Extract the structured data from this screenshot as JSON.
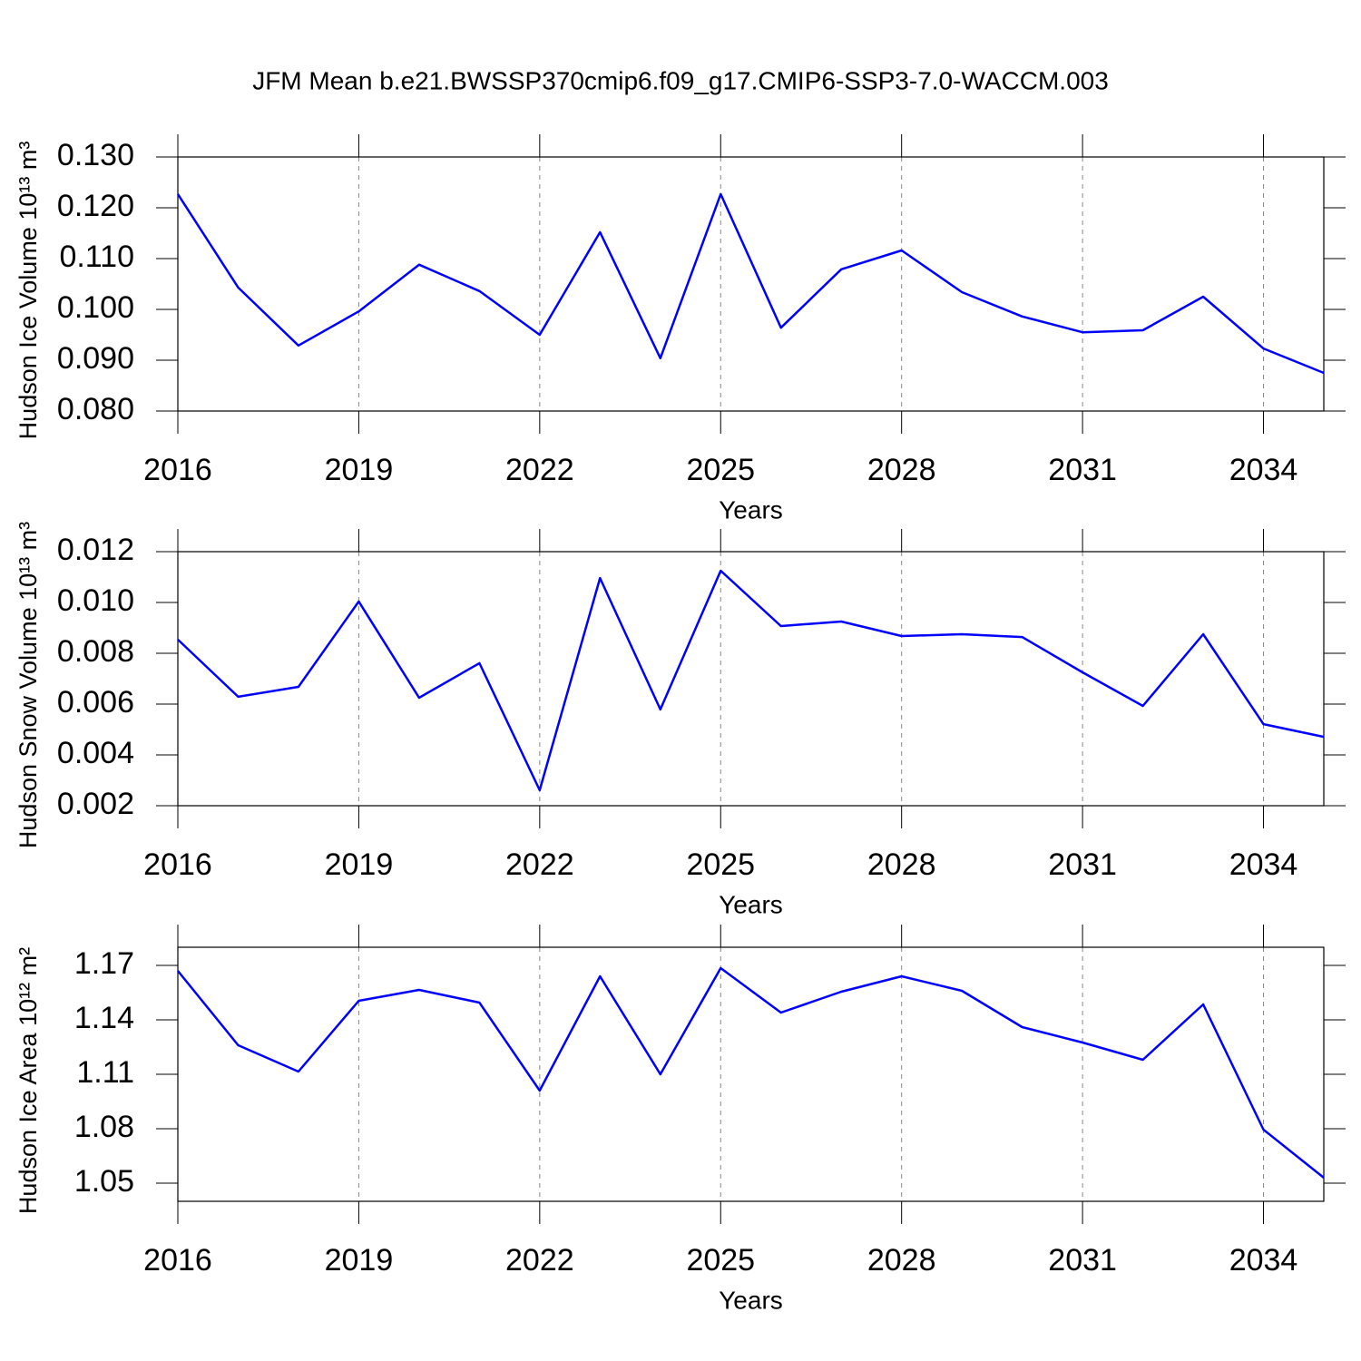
{
  "chart_data": [
    {
      "type": "line",
      "title": "JFM Mean b.e21.BWSSP370cmip6.f09_g17.CMIP6-SSP3-7.0-WACCM.003",
      "ylabel": "Hudson Ice Volume 10¹³ m³",
      "xlabel": "Years",
      "x": [
        2016,
        2017,
        2018,
        2019,
        2020,
        2021,
        2022,
        2023,
        2024,
        2025,
        2026,
        2027,
        2028,
        2029,
        2030,
        2031,
        2032,
        2033,
        2034,
        2035
      ],
      "values": [
        0.1227,
        0.1043,
        0.0929,
        0.0996,
        0.1088,
        0.1036,
        0.095,
        0.1152,
        0.0904,
        0.1227,
        0.0964,
        0.1079,
        0.1116,
        0.1034,
        0.0986,
        0.0955,
        0.0959,
        0.1025,
        0.0923,
        0.0875
      ],
      "color": "#0000ff",
      "xlim": [
        2016,
        2035
      ],
      "xticks": [
        2016,
        2019,
        2022,
        2025,
        2028,
        2031,
        2034
      ],
      "ylim": [
        0.08,
        0.13
      ],
      "yticks": [
        {
          "value": 0.08,
          "label": "0.080"
        },
        {
          "value": 0.09,
          "label": "0.090"
        },
        {
          "value": 0.1,
          "label": "0.100"
        },
        {
          "value": 0.11,
          "label": "0.110"
        },
        {
          "value": 0.12,
          "label": "0.120"
        },
        {
          "value": 0.13,
          "label": "0.130"
        }
      ],
      "grid": true
    },
    {
      "type": "line",
      "ylabel": "Hudson Snow Volume 10¹³ m³",
      "xlabel": "Years",
      "x": [
        2016,
        2017,
        2018,
        2019,
        2020,
        2021,
        2022,
        2023,
        2024,
        2025,
        2026,
        2027,
        2028,
        2029,
        2030,
        2031,
        2032,
        2033,
        2034,
        2035
      ],
      "values": [
        0.00854,
        0.00629,
        0.00668,
        0.01004,
        0.00625,
        0.00761,
        0.00261,
        0.01096,
        0.00579,
        0.01125,
        0.00907,
        0.00925,
        0.00868,
        0.00875,
        0.00864,
        0.00725,
        0.00593,
        0.00875,
        0.00521,
        0.00471
      ],
      "color": "#0000ff",
      "xlim": [
        2016,
        2035
      ],
      "xticks": [
        2016,
        2019,
        2022,
        2025,
        2028,
        2031,
        2034
      ],
      "ylim": [
        0.002,
        0.012
      ],
      "yticks": [
        0.002,
        0.004,
        0.006,
        0.008,
        {
          "value": 0.01,
          "label": "0.010"
        },
        0.012
      ],
      "grid": true
    },
    {
      "type": "line",
      "ylabel": "Hudson Ice Area 10¹² m²",
      "xlabel": "Years",
      "x": [
        2016,
        2017,
        2018,
        2019,
        2020,
        2021,
        2022,
        2023,
        2024,
        2025,
        2026,
        2027,
        2028,
        2029,
        2030,
        2031,
        2032,
        2033,
        2034,
        2035
      ],
      "values": [
        1.167,
        1.126,
        1.1115,
        1.1505,
        1.1565,
        1.1495,
        1.101,
        1.164,
        1.11,
        1.1685,
        1.144,
        1.1555,
        1.164,
        1.156,
        1.136,
        1.1275,
        1.118,
        1.1485,
        1.0795,
        1.053
      ],
      "color": "#0000ff",
      "xlim": [
        2016,
        2035
      ],
      "xticks": [
        2016,
        2019,
        2022,
        2025,
        2028,
        2031,
        2034
      ],
      "ylim": [
        1.04,
        1.18
      ],
      "yticks": [
        1.05,
        1.08,
        1.11,
        1.14,
        1.17
      ],
      "grid": true
    }
  ]
}
